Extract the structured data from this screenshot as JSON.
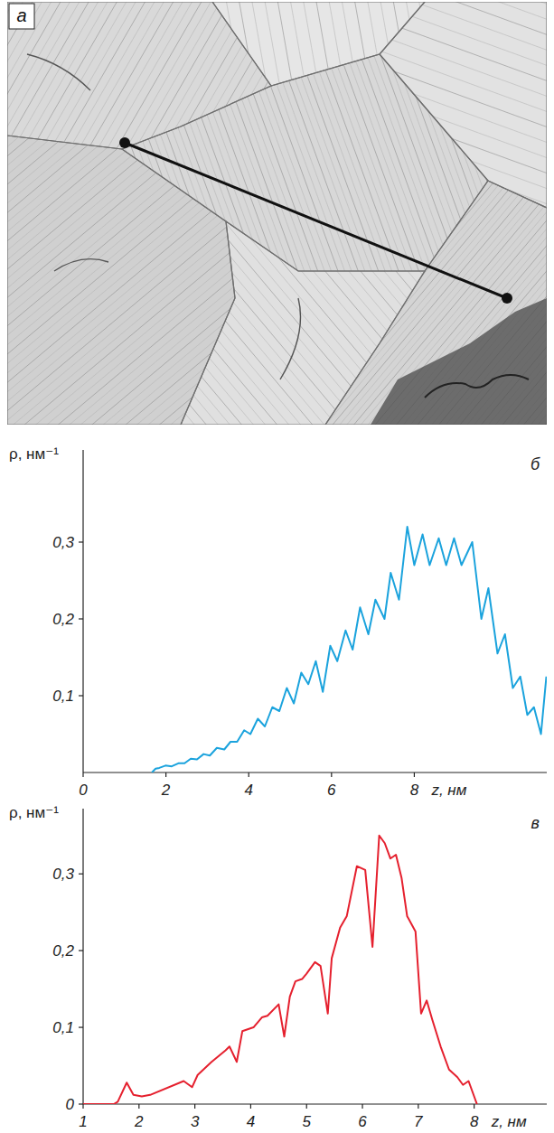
{
  "image": {
    "label": "а"
  },
  "chart_data": [
    {
      "type": "line",
      "title": "б",
      "xlabel": "z, нм",
      "ylabel": "ρ, нм⁻¹",
      "x": [
        1.66,
        1.75,
        1.84,
        1.99,
        2.14,
        2.3,
        2.45,
        2.6,
        2.75,
        2.91,
        3.06,
        3.23,
        3.41,
        3.56,
        3.72,
        3.89,
        4.04,
        4.22,
        4.39,
        4.57,
        4.74,
        4.92,
        5.09,
        5.27,
        5.44,
        5.62,
        5.79,
        5.97,
        6.14,
        6.34,
        6.51,
        6.69,
        6.89,
        7.06,
        7.28,
        7.43,
        7.63,
        7.83,
        8.0,
        8.2,
        8.37,
        8.59,
        8.77,
        8.96,
        9.14,
        9.4,
        9.62,
        9.79,
        10.01,
        10.19,
        10.38,
        10.56,
        10.73,
        10.89,
        11.06,
        11.19
      ],
      "series": [
        {
          "color": "#1ba3dd",
          "values": [
            0,
            0.005,
            0.006,
            0.009,
            0.008,
            0.012,
            0.012,
            0.018,
            0.017,
            0.024,
            0.022,
            0.032,
            0.03,
            0.04,
            0.04,
            0.055,
            0.05,
            0.07,
            0.06,
            0.085,
            0.08,
            0.11,
            0.09,
            0.13,
            0.115,
            0.145,
            0.105,
            0.165,
            0.145,
            0.185,
            0.16,
            0.215,
            0.18,
            0.225,
            0.2,
            0.26,
            0.225,
            0.32,
            0.27,
            0.31,
            0.27,
            0.305,
            0.27,
            0.305,
            0.27,
            0.3,
            0.2,
            0.24,
            0.155,
            0.18,
            0.11,
            0.125,
            0.075,
            0.085,
            0.05,
            0.125
          ]
        }
      ],
      "xlim": [
        0,
        11.2
      ],
      "ylim": [
        0,
        0.42
      ],
      "xticks": [
        0,
        2,
        4,
        6,
        8
      ],
      "yticks": [
        {
          "value": 0.1,
          "label": "0,1"
        },
        {
          "value": 0.2,
          "label": "0,2"
        },
        {
          "value": 0.3,
          "label": "0,3"
        }
      ],
      "grid": false
    },
    {
      "type": "line",
      "title": "в",
      "xlabel": "z, нм",
      "ylabel": "ρ, нм⁻¹",
      "x": [
        1,
        1.55,
        1.62,
        1.78,
        1.9,
        2.05,
        2.2,
        2.8,
        2.95,
        3.05,
        3.3,
        3.55,
        3.62,
        3.75,
        3.85,
        4.05,
        4.2,
        4.3,
        4.5,
        4.6,
        4.7,
        4.8,
        4.92,
        5.0,
        5.15,
        5.25,
        5.38,
        5.45,
        5.6,
        5.72,
        5.9,
        6.05,
        6.18,
        6.3,
        6.4,
        6.5,
        6.6,
        6.7,
        6.8,
        6.95,
        7.05,
        7.15,
        7.25,
        7.4,
        7.55,
        7.7,
        7.8,
        7.9,
        8.05
      ],
      "series": [
        {
          "color": "#e5202e",
          "values": [
            0,
            0,
            0.003,
            0.028,
            0.012,
            0.01,
            0.012,
            0.03,
            0.022,
            0.038,
            0.055,
            0.07,
            0.075,
            0.055,
            0.095,
            0.1,
            0.113,
            0.115,
            0.13,
            0.088,
            0.14,
            0.16,
            0.163,
            0.17,
            0.185,
            0.18,
            0.118,
            0.19,
            0.23,
            0.245,
            0.31,
            0.305,
            0.205,
            0.35,
            0.34,
            0.32,
            0.325,
            0.295,
            0.245,
            0.225,
            0.118,
            0.135,
            0.11,
            0.075,
            0.045,
            0.035,
            0.025,
            0.03,
            0
          ]
        }
      ],
      "xlim": [
        1,
        9.3
      ],
      "ylim": [
        0,
        0.385
      ],
      "xticks": [
        1,
        2,
        3,
        4,
        5,
        6,
        7,
        8
      ],
      "yticks": [
        0,
        {
          "value": 0.1,
          "label": "0,1"
        },
        {
          "value": 0.2,
          "label": "0,2"
        },
        {
          "value": 0.3,
          "label": "0,3"
        }
      ],
      "grid": false
    }
  ]
}
